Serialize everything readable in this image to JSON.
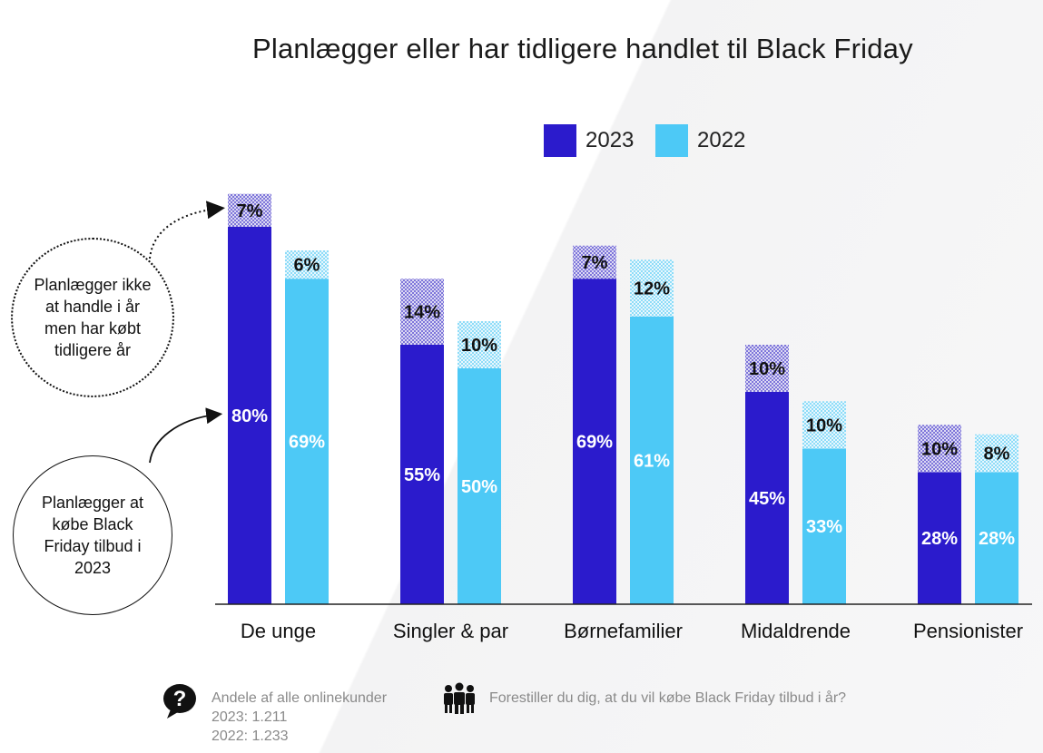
{
  "title": "Planlægger eller har tidligere handlet til Black Friday",
  "colors": {
    "series_2023": "#2b1bcc",
    "series_2022": "#4dc9f6",
    "extra_2023_dot": "#3b2fc9",
    "extra_2022_dot": "#4dc9f6"
  },
  "legend": [
    {
      "label": "2023",
      "color": "#2b1bcc"
    },
    {
      "label": "2022",
      "color": "#4dc9f6"
    }
  ],
  "callouts": {
    "not_planning": "Planlægger ikke at handle i år men har købt tidligere år",
    "planning": "Planlægger at købe Black Friday tilbud i 2023"
  },
  "footer": {
    "sample_icon": "question-bubble-icon",
    "sample_title": "Andele af alle onlinekunder",
    "sample_2023": "2023: 1.211",
    "sample_2022": "2022: 1.233",
    "question_icon": "people-icon",
    "question_text": "Forestiller du dig, at du vil købe Black Friday tilbud i år?"
  },
  "chart_data": {
    "type": "bar",
    "stacked": true,
    "categories": [
      "De unge",
      "Singler & par",
      "Børnefamilier",
      "Midaldrende",
      "Pensionister"
    ],
    "series": [
      {
        "name": "2023",
        "stack": "2023",
        "part": "Planlægger at købe Black Friday tilbud i 2023",
        "values": [
          80,
          55,
          69,
          45,
          28
        ]
      },
      {
        "name": "2023",
        "stack": "2023",
        "part": "Planlægger ikke at handle i år men har købt tidligere år",
        "values": [
          7,
          14,
          7,
          10,
          10
        ]
      },
      {
        "name": "2022",
        "stack": "2022",
        "part": "Planlægger at købe Black Friday tilbud i 2023",
        "values": [
          69,
          50,
          61,
          33,
          28
        ]
      },
      {
        "name": "2022",
        "stack": "2022",
        "part": "Planlægger ikke at handle i år men har købt tidligere år",
        "values": [
          6,
          10,
          12,
          10,
          8
        ]
      }
    ],
    "value_suffix": "%",
    "ylim": [
      0,
      100
    ],
    "xlabel": "",
    "ylabel": "",
    "grid": false,
    "legend_position": "top-right"
  }
}
